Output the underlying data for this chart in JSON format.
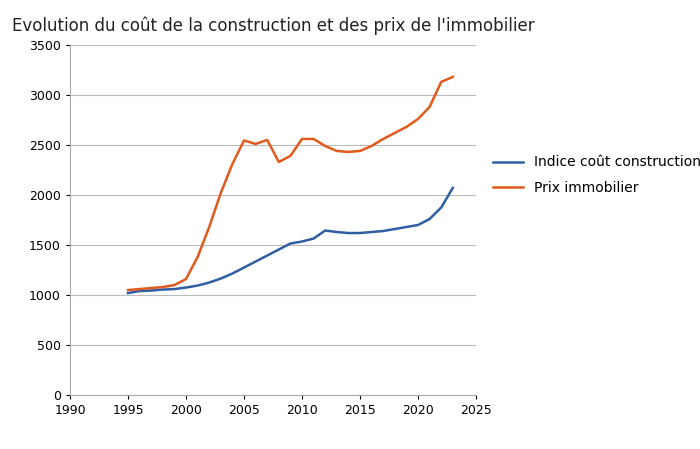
{
  "title": "Evolution du coût de la construction et des prix de l'immobilier",
  "construction_x": [
    1995,
    1996,
    1997,
    1998,
    1999,
    2000,
    2001,
    2002,
    2003,
    2004,
    2005,
    2006,
    2007,
    2008,
    2009,
    2010,
    2011,
    2012,
    2013,
    2014,
    2015,
    2016,
    2017,
    2018,
    2019,
    2020,
    2021,
    2022,
    2023
  ],
  "construction_y": [
    1020,
    1040,
    1045,
    1055,
    1060,
    1075,
    1095,
    1125,
    1165,
    1215,
    1275,
    1335,
    1395,
    1455,
    1515,
    1535,
    1565,
    1645,
    1630,
    1620,
    1620,
    1630,
    1640,
    1660,
    1680,
    1700,
    1760,
    1875,
    2070
  ],
  "immo_x": [
    1995,
    1996,
    1997,
    1998,
    1999,
    2000,
    2001,
    2002,
    2003,
    2004,
    2005,
    2006,
    2007,
    2008,
    2009,
    2010,
    2011,
    2012,
    2013,
    2014,
    2015,
    2016,
    2017,
    2018,
    2019,
    2020,
    2021,
    2022,
    2023
  ],
  "immo_y": [
    1050,
    1060,
    1070,
    1080,
    1100,
    1160,
    1380,
    1680,
    2020,
    2310,
    2545,
    2510,
    2550,
    2330,
    2390,
    2560,
    2560,
    2490,
    2440,
    2430,
    2440,
    2490,
    2560,
    2620,
    2680,
    2760,
    2880,
    3130,
    3180
  ],
  "construction_color": "#2e5fa3",
  "immo_color": "#e05a1e",
  "construction_label": "Indice coût construction",
  "immo_label": "Prix immobilier",
  "xlim": [
    1990,
    2025
  ],
  "ylim": [
    0,
    3500
  ],
  "xticks": [
    1990,
    1995,
    2000,
    2005,
    2010,
    2015,
    2020,
    2025
  ],
  "yticks": [
    0,
    500,
    1000,
    1500,
    2000,
    2500,
    3000,
    3500
  ],
  "bg_color": "#ffffff",
  "plot_bg_color": "#ffffff",
  "grid_color": "#bbbbbb",
  "title_fontsize": 12,
  "tick_fontsize": 9,
  "legend_fontsize": 10
}
